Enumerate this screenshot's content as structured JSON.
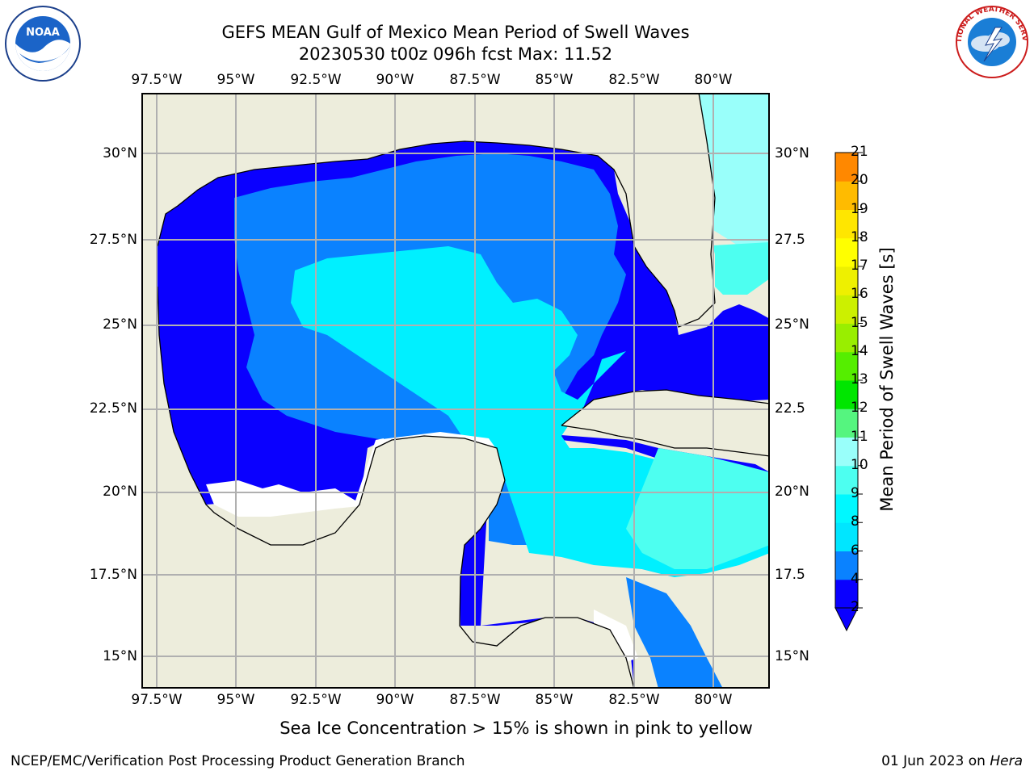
{
  "header": {
    "title_line_1": "GEFS MEAN Gulf of Mexico Mean Period of Swell Waves",
    "title_line_2": "20230530 t00z 096h fcst   Max: 11.52"
  },
  "logos": {
    "left": {
      "icon": "noaa-logo",
      "text": "NOAA"
    },
    "right": {
      "icon": "nws-logo",
      "text": "NATIONAL WEATHER SERVICE"
    }
  },
  "map": {
    "longitude_labels": [
      "97.5°W",
      "95°W",
      "92.5°W",
      "90°W",
      "87.5°W",
      "85°W",
      "82.5°W",
      "80°W"
    ],
    "latitude_labels_left": [
      "30°N",
      "27.5°N",
      "25°N",
      "22.5°N",
      "20°N",
      "17.5°N",
      "15°N"
    ],
    "latitude_labels_right": [
      "30°N",
      "27.5",
      "25°N",
      "22.5",
      "20°N",
      "17.5",
      "15°N"
    ],
    "colors": {
      "land": "#ededdc",
      "grid": "#b0b0b0",
      "coast": "#000000"
    }
  },
  "colorbar": {
    "title": "Mean Period of Swell Waves [s]",
    "ticks": [
      "2",
      "4",
      "6",
      "8",
      "9",
      "10",
      "11",
      "12",
      "13",
      "14",
      "15",
      "16",
      "17",
      "18",
      "19",
      "20",
      "21"
    ],
    "colors": [
      "#0a00ff",
      "#0a82ff",
      "#00e6ff",
      "#00f8ff",
      "#4dfff0",
      "#99fffa",
      "#55f57f",
      "#00e600",
      "#55ee00",
      "#99ee00",
      "#ccf000",
      "#eef000",
      "#ffff00",
      "#ffe600",
      "#ffbb00",
      "#ff8800",
      "#ff5500",
      "#ff2200",
      "#ff0000"
    ]
  },
  "footer": {
    "note": "Sea Ice Concentration > 15% is shown in pink to yellow",
    "credit_left": "NCEP/EMC/Verification Post Processing Product Generation Branch",
    "credit_right_date": "01 Jun 2023 on ",
    "credit_right_host": "Hera"
  }
}
